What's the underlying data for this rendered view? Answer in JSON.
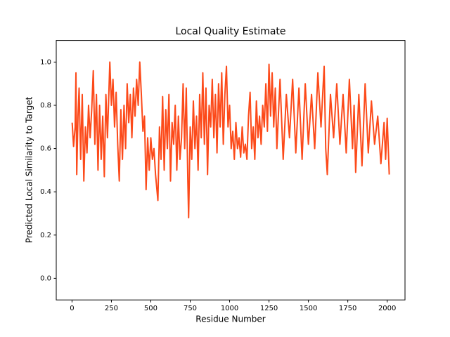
{
  "chart_data": {
    "type": "line",
    "title": "Local Quality Estimate",
    "xlabel": "Residue Number",
    "ylabel": "Predicted Local Similarity to Target",
    "color": "#fc4a1a",
    "x": [
      1,
      10,
      20,
      25,
      30,
      38,
      45,
      55,
      65,
      75,
      85,
      95,
      105,
      115,
      125,
      135,
      145,
      155,
      165,
      175,
      185,
      195,
      205,
      215,
      225,
      240,
      250,
      260,
      270,
      280,
      290,
      300,
      310,
      320,
      330,
      340,
      350,
      360,
      370,
      380,
      390,
      400,
      410,
      420,
      430,
      440,
      450,
      460,
      470,
      480,
      490,
      500,
      510,
      520,
      530,
      545,
      555,
      565,
      575,
      585,
      595,
      605,
      615,
      625,
      635,
      645,
      655,
      665,
      675,
      685,
      695,
      705,
      715,
      725,
      735,
      740,
      750,
      760,
      770,
      780,
      790,
      800,
      810,
      820,
      830,
      840,
      850,
      860,
      870,
      880,
      890,
      900,
      910,
      920,
      930,
      940,
      950,
      960,
      970,
      980,
      990,
      1000,
      1010,
      1020,
      1030,
      1040,
      1050,
      1060,
      1070,
      1080,
      1090,
      1100,
      1110,
      1120,
      1130,
      1140,
      1150,
      1160,
      1170,
      1180,
      1190,
      1200,
      1210,
      1220,
      1230,
      1240,
      1250,
      1260,
      1270,
      1280,
      1290,
      1300,
      1320,
      1340,
      1360,
      1380,
      1400,
      1420,
      1440,
      1460,
      1480,
      1500,
      1520,
      1540,
      1560,
      1580,
      1600,
      1610,
      1620,
      1640,
      1660,
      1680,
      1700,
      1720,
      1740,
      1760,
      1780,
      1790,
      1800,
      1820,
      1840,
      1860,
      1880,
      1900,
      1920,
      1940,
      1960,
      1980,
      1990,
      2000,
      2013
    ],
    "values": [
      0.72,
      0.61,
      0.7,
      0.95,
      0.48,
      0.75,
      0.88,
      0.55,
      0.85,
      0.45,
      0.7,
      0.58,
      0.8,
      0.65,
      0.78,
      0.96,
      0.62,
      0.85,
      0.5,
      0.8,
      0.55,
      0.75,
      0.47,
      0.85,
      0.65,
      1.0,
      0.8,
      0.92,
      0.7,
      0.86,
      0.62,
      0.45,
      0.78,
      0.55,
      0.8,
      0.6,
      0.9,
      0.72,
      0.85,
      0.65,
      0.88,
      0.75,
      0.92,
      0.8,
      1.0,
      0.85,
      0.68,
      0.75,
      0.41,
      0.65,
      0.5,
      0.65,
      0.55,
      0.6,
      0.48,
      0.36,
      0.7,
      0.55,
      0.84,
      0.5,
      0.78,
      0.6,
      0.85,
      0.45,
      0.72,
      0.62,
      0.8,
      0.5,
      0.75,
      0.55,
      0.65,
      0.9,
      0.6,
      0.88,
      0.45,
      0.28,
      0.7,
      0.55,
      0.82,
      0.6,
      0.75,
      0.5,
      0.85,
      0.65,
      0.95,
      0.62,
      0.88,
      0.48,
      0.8,
      0.7,
      0.92,
      0.65,
      0.85,
      0.58,
      0.9,
      0.7,
      0.95,
      0.62,
      0.85,
      0.98,
      0.7,
      0.8,
      0.6,
      0.68,
      0.55,
      0.72,
      0.6,
      0.65,
      0.56,
      0.7,
      0.58,
      0.62,
      0.55,
      0.75,
      0.86,
      0.6,
      0.7,
      0.55,
      0.82,
      0.65,
      0.75,
      0.62,
      0.8,
      0.7,
      0.9,
      0.68,
      0.99,
      0.75,
      0.95,
      0.7,
      0.88,
      0.6,
      0.92,
      0.55,
      0.85,
      0.65,
      0.92,
      0.58,
      0.88,
      0.55,
      0.9,
      0.62,
      0.85,
      0.6,
      0.95,
      0.7,
      0.98,
      0.6,
      0.48,
      0.85,
      0.65,
      0.9,
      0.62,
      0.85,
      0.58,
      0.92,
      0.6,
      0.8,
      0.49,
      0.85,
      0.52,
      0.9,
      0.58,
      0.82,
      0.62,
      0.75,
      0.53,
      0.72,
      0.55,
      0.74,
      0.48
    ],
    "xlim": [
      -100,
      2113
    ],
    "ylim": [
      -0.1,
      1.1
    ],
    "xticks": [
      0,
      250,
      500,
      750,
      1000,
      1250,
      1500,
      1750,
      2000
    ],
    "yticks": [
      {
        "value": 0,
        "label": "0.0"
      },
      0.2,
      0.4,
      0.6,
      0.8,
      {
        "value": 1,
        "label": "1.0"
      }
    ],
    "grid": false
  }
}
